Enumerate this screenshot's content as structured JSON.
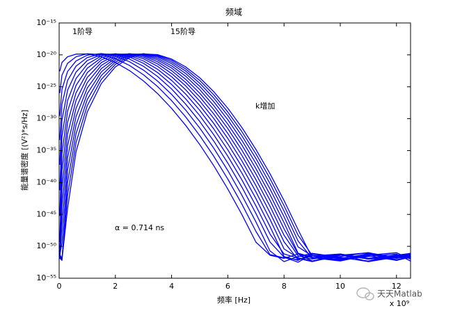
{
  "chart_data": {
    "type": "line",
    "title": "频域",
    "x_label": "频率 [Hz]",
    "x_multiplier": "x 10⁹",
    "y_label": "能量谱密度 [(V²)*s/Hz]",
    "annotations": [
      "1阶导",
      "15阶导",
      "k增加",
      "α = 0.714 ns"
    ],
    "watermark": "天天Matlab",
    "yscale": "log",
    "grid": false,
    "xlim": [
      0,
      12.5
    ],
    "xticks": [
      0,
      2,
      4,
      6,
      8,
      10,
      12
    ],
    "ylim": [
      1e-55,
      1e-15
    ],
    "yticks": [
      {
        "value": 1e-55,
        "label": "10⁻⁵⁵"
      },
      {
        "value": 1e-50,
        "label": "10⁻⁵⁰"
      },
      {
        "value": 1e-45,
        "label": "10⁻⁴⁵"
      },
      {
        "value": 1e-40,
        "label": "10⁻⁴⁰"
      },
      {
        "value": 1e-35,
        "label": "10⁻³⁵"
      },
      {
        "value": 1e-30,
        "label": "10⁻³⁰"
      },
      {
        "value": 1e-25,
        "label": "10⁻²⁵"
      },
      {
        "value": 1e-20,
        "label": "10⁻²⁰"
      },
      {
        "value": 1e-15,
        "label": "10⁻¹⁵"
      }
    ],
    "x": [
      0.02,
      0.1,
      0.3,
      0.6,
      1,
      1.5,
      2,
      2.5,
      3,
      3.5,
      4,
      4.5,
      5,
      5.5,
      6,
      6.5,
      7,
      7.5,
      8,
      8.5,
      9,
      10,
      11,
      12,
      12.5
    ],
    "series": [
      {
        "color": "#0000ff",
        "values": [
          2.6e-23,
          6.3e-22,
          5e-21,
          1.3e-20,
          1.4e-20,
          5e-21,
          6.5e-22,
          3.5e-23,
          8.1e-25,
          8.7e-27,
          4.1e-29,
          9.1e-32,
          9.1e-35,
          4.3e-38,
          9.3e-42,
          9.5e-46,
          4.5e-50,
          4e-52,
          1.3e-52,
          6.3e-52,
          5e-53,
          2.5e-52,
          1e-51,
          1.6e-52,
          5e-52
        ]
      },
      {
        "color": "#0000ff",
        "values": [
          1e-26,
          6.5e-24,
          4.7e-22,
          5e-21,
          1.5e-20,
          1.1e-20,
          2.6e-21,
          2.2e-22,
          7.6e-24,
          1.1e-25,
          6.8e-28,
          1.9e-30,
          2.3e-33,
          1.3e-36,
          3.4e-40,
          4.1e-44,
          2.2e-48,
          5e-52,
          1.6e-52,
          7.9e-53,
          3.2e-52,
          6.3e-52,
          1.3e-52,
          4e-52,
          7.9e-52
        ]
      },
      {
        "color": "#0000ff",
        "values": [
          2.6e-30,
          3.9e-26,
          2.5e-23,
          1.1e-21,
          8.9e-21,
          1.6e-20,
          6.5e-21,
          8.5e-22,
          4.1e-23,
          7.9e-25,
          6.5e-27,
          2.3e-29,
          3.5e-32,
          2.4e-35,
          7.4e-39,
          1e-42,
          6.6e-47,
          1.9e-51,
          4e-53,
          2.5e-52,
          7.9e-52,
          1e-52,
          3.2e-52,
          6.3e-53,
          2e-52
        ]
      },
      {
        "color": "#0000ff",
        "values": [
          4.4e-34,
          1.7e-28,
          9.8e-25,
          1.7e-22,
          3.8e-21,
          1.5e-20,
          1.1e-20,
          2.2e-21,
          1.6e-22,
          4.2e-24,
          4.5e-26,
          1.9e-28,
          3.7e-31,
          3.1e-34,
          1.1e-37,
          1.9e-41,
          1.4e-45,
          4.7e-50,
          2e-52,
          3.2e-53,
          6.3e-52,
          1.6e-52,
          5e-53,
          5e-52,
          1.3e-52
        ]
      },
      {
        "color": "#0000ff",
        "values": [
          5.8e-38,
          5.5e-31,
          2.9e-26,
          2e-23,
          1.3e-21,
          1.1e-20,
          1.4e-20,
          4.7e-21,
          4.7e-22,
          1.7e-23,
          2.3e-25,
          1.3e-27,
          3.1e-30,
          3.1e-33,
          1.3e-36,
          2.6e-40,
          2.2e-44,
          8.7e-49,
          6.3e-52,
          1.3e-52,
          4e-53,
          4e-52,
          1e-51,
          7.9e-53,
          2.5e-52
        ]
      },
      {
        "color": "#0000ff",
        "values": [
          6.2e-42,
          1.5e-33,
          6.9e-28,
          1.9e-24,
          3.4e-22,
          6.8e-21,
          1.5e-20,
          7.9e-21,
          1.1e-21,
          5.6e-23,
          1e-24,
          7.2e-27,
          2.1e-29,
          2.5e-32,
          1.3e-35,
          3e-39,
          3e-43,
          1.3e-47,
          2.5e-52,
          6.3e-53,
          7.9e-52,
          2e-52,
          4e-53,
          3.2e-52,
          6.3e-52
        ]
      },
      {
        "color": "#0000ff",
        "values": [
          5.8e-46,
          3.5e-36,
          1.5e-29,
          1.6e-25,
          7.9e-23,
          3.5e-21,
          1.4e-20,
          1.1e-20,
          2.4e-21,
          1.6e-22,
          3.8e-24,
          3.4e-26,
          1.2e-28,
          1.8e-31,
          1.1e-34,
          3e-38,
          3.4e-42,
          1.7e-46,
          3.9e-51,
          1.6e-52,
          5e-53,
          5e-52,
          1e-52,
          2.5e-52,
          7.9e-52
        ]
      },
      {
        "color": "#0000ff",
        "values": [
          4.7e-50,
          6.9e-39,
          2.6e-31,
          1.1e-26,
          1.6e-23,
          1.6e-21,
          1.2e-20,
          1.4e-20,
          4.3e-21,
          3.9e-22,
          1.2e-23,
          1.4e-25,
          6e-28,
          1.1e-30,
          7.9e-34,
          2.5e-37,
          3.3e-41,
          1.9e-45,
          5e-50,
          7.9e-53,
          4e-52,
          1.3e-52,
          6.3e-52,
          6.3e-53,
          3.2e-52
        ]
      },
      {
        "color": "#0000ff",
        "values": [
          6.3e-52,
          1.2e-41,
          4.2e-33,
          7.2e-28,
          2.8e-24,
          6.3e-22,
          8.1e-21,
          1.5e-20,
          6.8e-21,
          8.3e-22,
          3.4e-23,
          4.8e-25,
          2.6e-27,
          5.6e-30,
          4.9e-33,
          1.8e-36,
          2.8e-40,
          1.9e-44,
          5.5e-49,
          3.2e-52,
          1e-52,
          5e-52,
          4e-53,
          2e-52,
          1.3e-52
        ]
      },
      {
        "color": "#0000ff",
        "values": [
          2.5e-52,
          2e-44,
          5.9e-35,
          4.2e-29,
          4.4e-25,
          2.2e-22,
          5.1e-21,
          1.5e-20,
          9.5e-21,
          1.6e-21,
          8.5e-23,
          1.5e-24,
          1e-26,
          2.7e-29,
          2.8e-32,
          1.2e-35,
          2.2e-39,
          1.7e-43,
          5.6e-48,
          6.3e-52,
          1.6e-52,
          5e-53,
          4e-52,
          1e-51,
          1e-52
        ]
      },
      {
        "color": "#0000ff",
        "values": [
          1e-52,
          2.8e-47,
          7.4e-37,
          2.1e-30,
          6.2e-26,
          7.1e-23,
          2.9e-21,
          1.4e-20,
          1.2e-20,
          2.8e-21,
          1.9e-22,
          4.5e-24,
          3.7e-26,
          1.1e-28,
          1.4e-31,
          7.4e-35,
          1.5e-38,
          1.3e-42,
          5.1e-47,
          8.3e-52,
          2e-52,
          6.3e-53,
          5e-52,
          1.6e-52,
          4e-52
        ]
      },
      {
        "color": "#0000ff",
        "values": [
          4e-52,
          3.6e-50,
          8.9e-39,
          1e-31,
          8.1e-27,
          2.1e-23,
          1.5e-21,
          1.1e-20,
          1.4e-20,
          4.6e-21,
          4.1e-22,
          1.2e-23,
          1.2e-25,
          4.6e-28,
          6.8e-31,
          4.1e-34,
          9.8e-38,
          1e-41,
          4.3e-46,
          7.9e-51,
          3.2e-52,
          7.9e-53,
          2.5e-52,
          6.3e-52,
          5e-53
        ]
      },
      {
        "color": "#0000ff",
        "values": [
          1.6e-52,
          6.3e-53,
          9.5e-41,
          4.3e-33,
          9.8e-28,
          5.8e-24,
          7.4e-22,
          8.5e-21,
          1.5e-20,
          6.6e-21,
          7.8e-22,
          2.9e-23,
          3.6e-25,
          1.7e-27,
          3e-30,
          2.1e-33,
          5.8e-37,
          6.8e-41,
          3.3e-45,
          6.8e-50,
          1.3e-52,
          5e-52,
          1e-52,
          3.2e-52,
          2e-52
        ]
      },
      {
        "color": "#0000ff",
        "values": [
          5e-52,
          1.3e-52,
          9.5e-43,
          1.7e-34,
          1.1e-28,
          1.4e-24,
          3.2e-22,
          5.8e-21,
          1.5e-20,
          8.9e-21,
          1.4e-21,
          6.3e-23,
          1e-24,
          5.5e-27,
          1.1e-29,
          9.5e-33,
          3.1e-36,
          4.2e-40,
          2.3e-44,
          5.4e-49,
          4e-52,
          6.3e-53,
          7.9e-52,
          1.3e-52,
          3.2e-52
        ]
      },
      {
        "color": "#0000ff",
        "values": [
          3.2e-52,
          7.9e-53,
          8.7e-45,
          6.3e-36,
          1.1e-29,
          3.2e-25,
          1.3e-22,
          3.7e-21,
          1.4e-20,
          1.1e-20,
          2.2e-21,
          1.3e-22,
          2.6e-24,
          1.7e-26,
          4.3e-29,
          4.2e-32,
          1.5e-35,
          2.4e-39,
          1.5e-43,
          4e-48,
          1.6e-52,
          6.3e-52,
          1e-52,
          2.5e-52,
          5e-52
        ]
      }
    ]
  }
}
